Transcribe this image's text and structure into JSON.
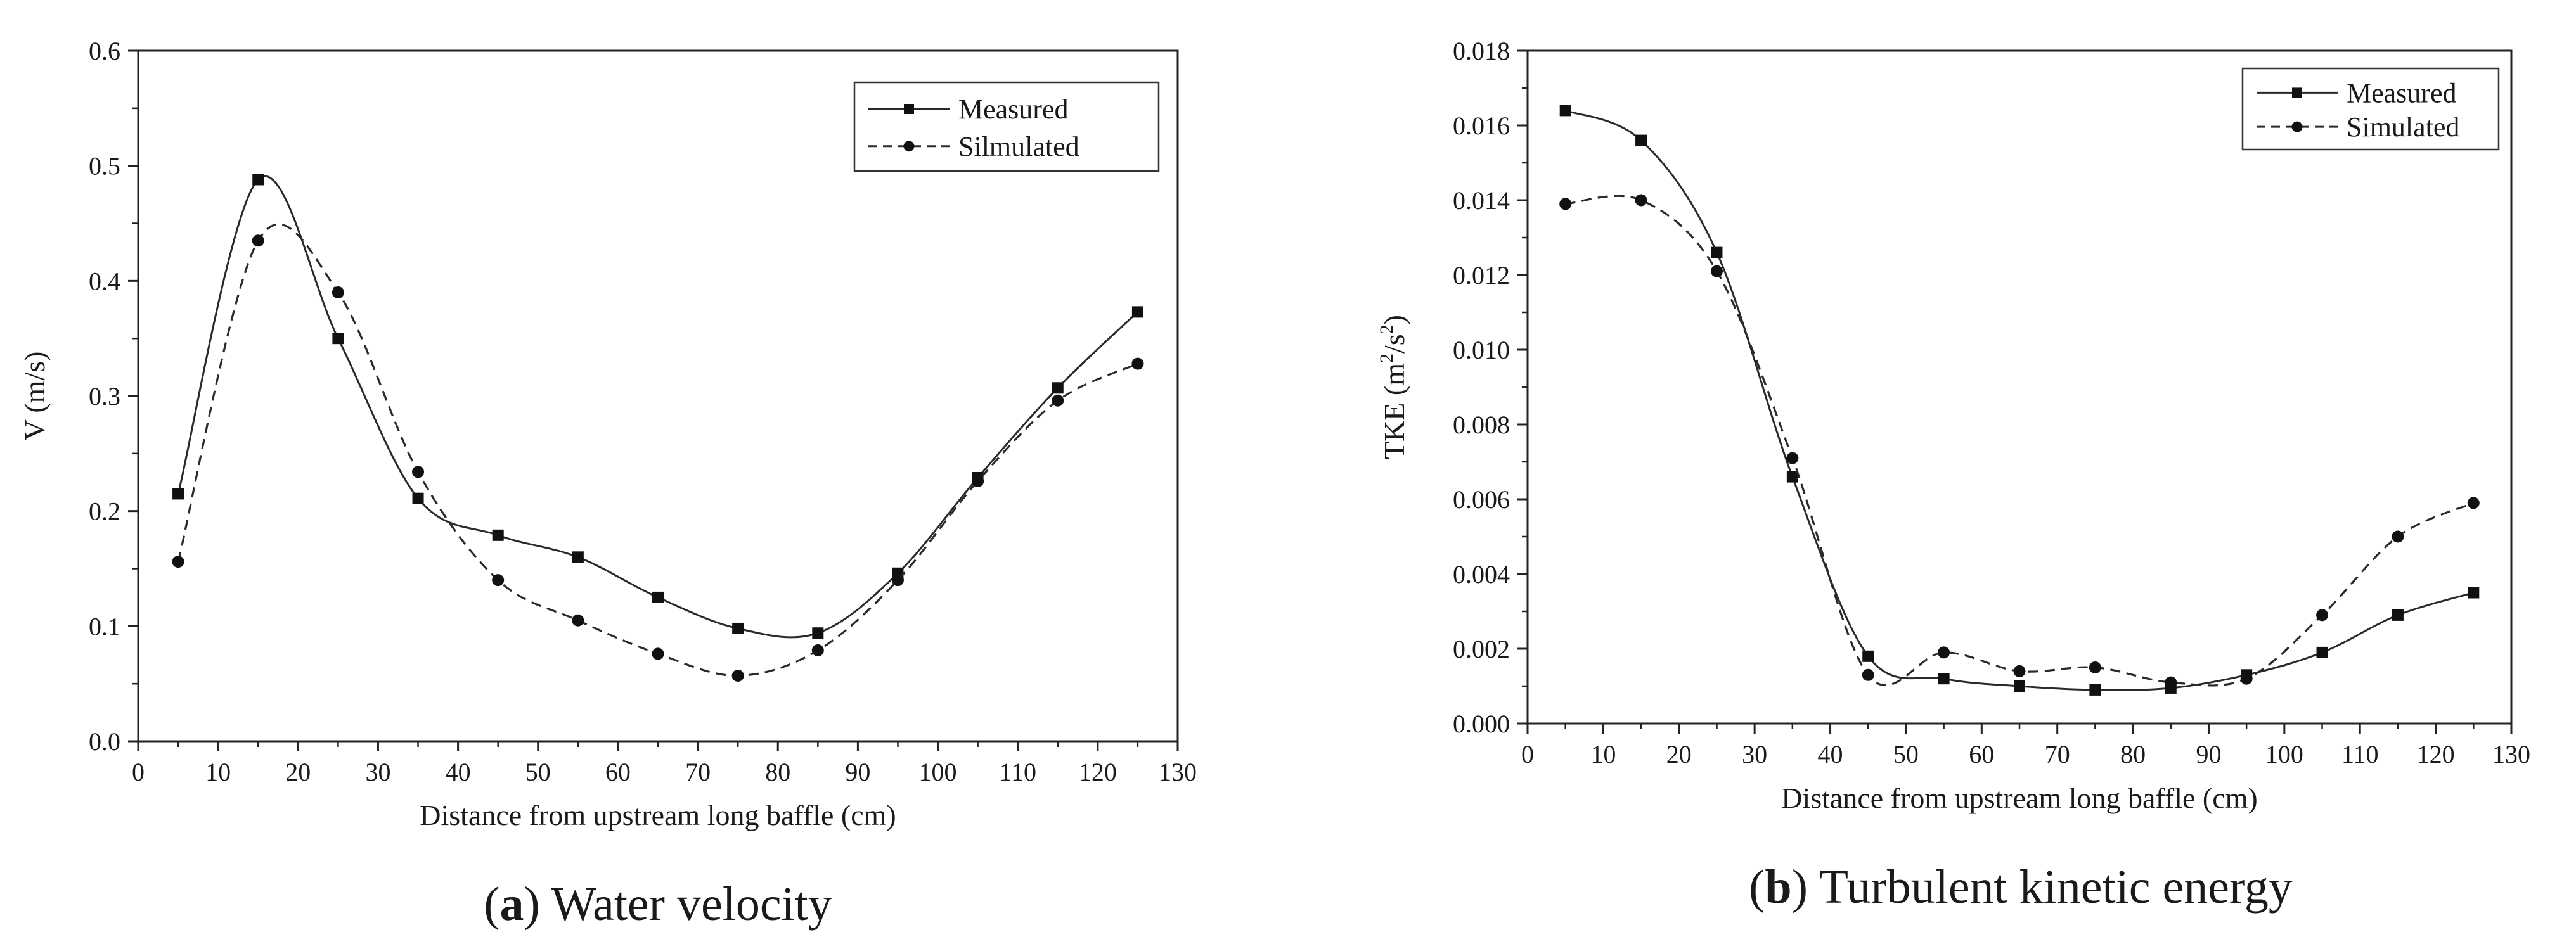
{
  "chart_data": [
    {
      "id": "a",
      "type": "line",
      "caption_letter": "a",
      "caption_paren_open": "(",
      "caption_paren_close": ")",
      "caption_text": " Water velocity",
      "title": "(a) Water velocity",
      "xlabel": "Distance from upstream long baffle (cm)",
      "ylabel": "V (m/s)",
      "xlim": [
        0,
        130
      ],
      "ylim": [
        0,
        0.6
      ],
      "xticks": [
        0,
        10,
        20,
        30,
        40,
        50,
        60,
        70,
        80,
        90,
        100,
        110,
        120,
        130
      ],
      "yticks": [
        0.0,
        0.1,
        0.2,
        0.3,
        0.4,
        0.5,
        0.6
      ],
      "ytick_labels": [
        "0.0",
        "0.1",
        "0.2",
        "0.3",
        "0.4",
        "0.5",
        "0.6"
      ],
      "x": [
        5,
        15,
        25,
        35,
        45,
        55,
        65,
        75,
        85,
        95,
        105,
        115,
        125
      ],
      "legend_position": "top-right",
      "series": [
        {
          "name": "Measured",
          "style": "solid",
          "marker": "square",
          "values": [
            0.215,
            0.488,
            0.35,
            0.211,
            0.179,
            0.16,
            0.125,
            0.098,
            0.094,
            0.146,
            0.229,
            0.307,
            0.373
          ]
        },
        {
          "name": "Silmulated",
          "style": "dashed",
          "marker": "circle",
          "values": [
            0.156,
            0.435,
            0.39,
            0.234,
            0.14,
            0.105,
            0.076,
            0.057,
            0.079,
            0.14,
            0.226,
            0.296,
            0.328
          ]
        }
      ]
    },
    {
      "id": "b",
      "type": "line",
      "caption_letter": "b",
      "caption_paren_open": "(",
      "caption_paren_close": ")",
      "caption_text": " Turbulent kinetic energy",
      "title": "(b) Turbulent kinetic energy",
      "xlabel": "Distance from upstream long baffle (cm)",
      "ylabel": "TKE (m²/s²)",
      "ylabel_main": "TKE (m",
      "ylabel_sup1": "2",
      "ylabel_mid": "/s",
      "ylabel_sup2": "2",
      "ylabel_end": ")",
      "xlim": [
        0,
        130
      ],
      "ylim": [
        0,
        0.018
      ],
      "xticks": [
        0,
        10,
        20,
        30,
        40,
        50,
        60,
        70,
        80,
        90,
        100,
        110,
        120,
        130
      ],
      "yticks": [
        0.0,
        0.002,
        0.004,
        0.006,
        0.008,
        0.01,
        0.012,
        0.014,
        0.016,
        0.018
      ],
      "ytick_labels": [
        "0.000",
        "0.002",
        "0.004",
        "0.006",
        "0.008",
        "0.010",
        "0.012",
        "0.014",
        "0.016",
        "0.018"
      ],
      "x": [
        5,
        15,
        25,
        35,
        45,
        55,
        65,
        75,
        85,
        95,
        105,
        115,
        125
      ],
      "legend_position": "top-right",
      "series": [
        {
          "name": "Measured",
          "style": "solid",
          "marker": "square",
          "values": [
            0.0164,
            0.0156,
            0.0126,
            0.0066,
            0.0018,
            0.0012,
            0.001,
            0.0009,
            0.00095,
            0.0013,
            0.0019,
            0.0029,
            0.0035
          ]
        },
        {
          "name": "Simulated",
          "style": "dashed",
          "marker": "circle",
          "values": [
            0.0139,
            0.014,
            0.0121,
            0.0071,
            0.0013,
            0.0019,
            0.0014,
            0.0015,
            0.0011,
            0.0012,
            0.0029,
            0.005,
            0.0059
          ]
        }
      ]
    }
  ]
}
